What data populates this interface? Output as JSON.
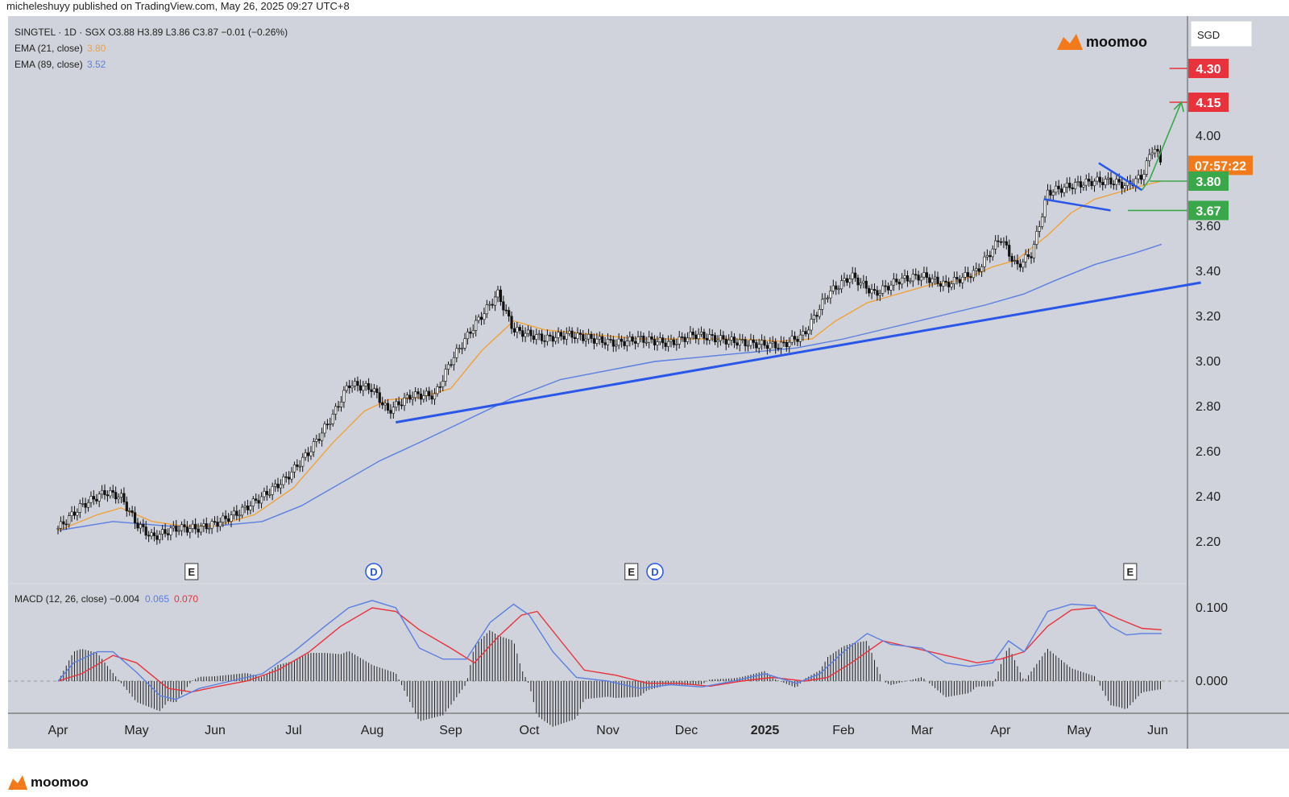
{
  "byline": "micheleshuyy published on TradingView.com, May 26, 2025 09:27 UTC+8",
  "footer_brand": "moomoo",
  "watermark_brand": "moomoo",
  "currency": "SGD",
  "legend": {
    "symbol_line": "SINGTEL · 1D · SGX  O3.88  H3.89  L3.86  C3.87  −0.01 (−0.26%)",
    "ema21_label": "EMA (21, close)",
    "ema21_value": "3.80",
    "ema89_label": "EMA (89, close)",
    "ema89_value": "3.52",
    "macd_label": "MACD (12, 26, close)",
    "macd_hist_value": "−0.004",
    "macd_value": "0.065",
    "macd_signal_value": "0.070"
  },
  "colors": {
    "background": "#d0d3dc",
    "ema21": "#f0a23a",
    "ema89": "#5b7fe0",
    "trendline": "#2a57e8",
    "target_red": "#e8333d",
    "support_green": "#3aa84a",
    "macd_line": "#5b7fe0",
    "signal_line": "#e8333d",
    "countdown": "#f27a1a"
  },
  "price_badges": [
    {
      "label": "4.30",
      "value": 4.3,
      "color": "#e8333d"
    },
    {
      "label": "4.15",
      "value": 4.15,
      "color": "#e8333d"
    },
    {
      "label": "07:57:22",
      "value": 3.87,
      "color": "#f27a1a"
    },
    {
      "label": "3.80",
      "value": 3.8,
      "color": "#3aa84a"
    },
    {
      "label": "3.67",
      "value": 3.67,
      "color": "#3aa84a"
    }
  ],
  "event_markers": [
    {
      "label": "E",
      "month_pos": 1.7
    },
    {
      "label": "D",
      "month_pos": 4.02
    },
    {
      "label": "E",
      "month_pos": 7.3
    },
    {
      "label": "D",
      "month_pos": 7.6
    },
    {
      "label": "E",
      "month_pos": 13.65
    }
  ],
  "chart_data": {
    "type": "candlestick",
    "title": "SINGTEL · 1D · SGX",
    "x_axis_labels": [
      "Apr",
      "May",
      "Jun",
      "Jul",
      "Aug",
      "Sep",
      "Oct",
      "Nov",
      "Dec",
      "2025",
      "Feb",
      "Mar",
      "Apr",
      "May",
      "Jun"
    ],
    "x_axis_bold": [
      false,
      false,
      false,
      false,
      false,
      false,
      false,
      false,
      false,
      true,
      false,
      false,
      false,
      false,
      false
    ],
    "price_ticks": [
      2.2,
      2.4,
      2.6,
      2.8,
      3.0,
      3.2,
      3.4,
      3.6,
      4.0
    ],
    "price_range": [
      2.08,
      4.46
    ],
    "macd_ticks": [
      "0.100",
      "0.000"
    ],
    "macd_range": [
      -0.03,
      0.13
    ],
    "price_path": [
      [
        0.0,
        2.26
      ],
      [
        0.3,
        2.36
      ],
      [
        0.6,
        2.42
      ],
      [
        0.8,
        2.4
      ],
      [
        1.0,
        2.28
      ],
      [
        1.2,
        2.22
      ],
      [
        1.5,
        2.26
      ],
      [
        1.8,
        2.26
      ],
      [
        2.0,
        2.28
      ],
      [
        2.3,
        2.33
      ],
      [
        2.6,
        2.4
      ],
      [
        2.9,
        2.48
      ],
      [
        3.2,
        2.6
      ],
      [
        3.5,
        2.76
      ],
      [
        3.7,
        2.9
      ],
      [
        4.0,
        2.88
      ],
      [
        4.2,
        2.78
      ],
      [
        4.5,
        2.85
      ],
      [
        4.8,
        2.85
      ],
      [
        5.0,
        3.0
      ],
      [
        5.3,
        3.16
      ],
      [
        5.6,
        3.3
      ],
      [
        5.8,
        3.14
      ],
      [
        6.2,
        3.1
      ],
      [
        6.5,
        3.12
      ],
      [
        6.8,
        3.1
      ],
      [
        7.1,
        3.08
      ],
      [
        7.4,
        3.1
      ],
      [
        7.8,
        3.08
      ],
      [
        8.1,
        3.12
      ],
      [
        8.4,
        3.1
      ],
      [
        8.8,
        3.08
      ],
      [
        9.2,
        3.07
      ],
      [
        9.5,
        3.12
      ],
      [
        9.8,
        3.3
      ],
      [
        10.1,
        3.38
      ],
      [
        10.4,
        3.3
      ],
      [
        10.7,
        3.36
      ],
      [
        11.0,
        3.38
      ],
      [
        11.3,
        3.34
      ],
      [
        11.7,
        3.4
      ],
      [
        12.0,
        3.55
      ],
      [
        12.2,
        3.42
      ],
      [
        12.4,
        3.48
      ],
      [
        12.6,
        3.75
      ],
      [
        12.9,
        3.78
      ],
      [
        13.2,
        3.8
      ],
      [
        13.4,
        3.8
      ],
      [
        13.6,
        3.78
      ],
      [
        13.8,
        3.82
      ],
      [
        13.95,
        3.96
      ],
      [
        14.05,
        3.87
      ]
    ],
    "ema21": [
      [
        0.0,
        2.25
      ],
      [
        0.5,
        2.32
      ],
      [
        0.8,
        2.35
      ],
      [
        1.2,
        2.29
      ],
      [
        1.6,
        2.27
      ],
      [
        2.0,
        2.27
      ],
      [
        2.5,
        2.32
      ],
      [
        3.0,
        2.44
      ],
      [
        3.5,
        2.64
      ],
      [
        3.9,
        2.78
      ],
      [
        4.2,
        2.83
      ],
      [
        4.6,
        2.84
      ],
      [
        5.0,
        2.88
      ],
      [
        5.4,
        3.05
      ],
      [
        5.8,
        3.18
      ],
      [
        6.2,
        3.14
      ],
      [
        6.8,
        3.12
      ],
      [
        7.4,
        3.1
      ],
      [
        8.0,
        3.1
      ],
      [
        8.6,
        3.1
      ],
      [
        9.2,
        3.09
      ],
      [
        9.6,
        3.1
      ],
      [
        9.9,
        3.18
      ],
      [
        10.3,
        3.26
      ],
      [
        10.7,
        3.3
      ],
      [
        11.1,
        3.34
      ],
      [
        11.5,
        3.36
      ],
      [
        11.9,
        3.42
      ],
      [
        12.2,
        3.45
      ],
      [
        12.6,
        3.56
      ],
      [
        12.9,
        3.66
      ],
      [
        13.2,
        3.72
      ],
      [
        13.5,
        3.75
      ],
      [
        13.8,
        3.78
      ],
      [
        14.05,
        3.8
      ]
    ],
    "ema89": [
      [
        0.0,
        2.25
      ],
      [
        0.7,
        2.29
      ],
      [
        1.4,
        2.27
      ],
      [
        2.0,
        2.27
      ],
      [
        2.6,
        2.29
      ],
      [
        3.1,
        2.36
      ],
      [
        3.6,
        2.46
      ],
      [
        4.1,
        2.56
      ],
      [
        4.6,
        2.64
      ],
      [
        5.2,
        2.74
      ],
      [
        5.8,
        2.84
      ],
      [
        6.4,
        2.92
      ],
      [
        7.0,
        2.96
      ],
      [
        7.6,
        3.0
      ],
      [
        8.2,
        3.02
      ],
      [
        8.8,
        3.04
      ],
      [
        9.4,
        3.06
      ],
      [
        10.0,
        3.1
      ],
      [
        10.6,
        3.15
      ],
      [
        11.2,
        3.2
      ],
      [
        11.8,
        3.25
      ],
      [
        12.3,
        3.3
      ],
      [
        12.7,
        3.36
      ],
      [
        13.2,
        3.43
      ],
      [
        13.7,
        3.48
      ],
      [
        14.05,
        3.52
      ]
    ],
    "trendline_long": [
      [
        4.3,
        2.73
      ],
      [
        14.55,
        3.35
      ]
    ],
    "triangle_upper": [
      [
        13.25,
        3.88
      ],
      [
        13.8,
        3.76
      ]
    ],
    "triangle_lower": [
      [
        12.55,
        3.72
      ],
      [
        13.4,
        3.67
      ]
    ],
    "projection_arrow": [
      [
        13.9,
        3.81
      ],
      [
        14.3,
        4.15
      ]
    ],
    "target_lines": [
      {
        "value": 4.3,
        "from": 14.15,
        "color": "#e8333d"
      },
      {
        "value": 4.15,
        "from": 14.15,
        "color": "#e8333d"
      },
      {
        "value": 3.8,
        "from": 13.9,
        "color": "#3aa84a"
      },
      {
        "value": 3.67,
        "from": 13.62,
        "color": "#3aa84a"
      }
    ],
    "macd": [
      [
        0.0,
        0.0
      ],
      [
        0.2,
        0.025
      ],
      [
        0.5,
        0.04
      ],
      [
        0.7,
        0.04
      ],
      [
        1.0,
        0.012
      ],
      [
        1.3,
        -0.02
      ],
      [
        1.5,
        -0.025
      ],
      [
        1.8,
        -0.01
      ],
      [
        2.2,
        0.0
      ],
      [
        2.6,
        0.01
      ],
      [
        3.0,
        0.04
      ],
      [
        3.4,
        0.075
      ],
      [
        3.7,
        0.1
      ],
      [
        4.0,
        0.11
      ],
      [
        4.3,
        0.1
      ],
      [
        4.6,
        0.045
      ],
      [
        4.9,
        0.03
      ],
      [
        5.2,
        0.03
      ],
      [
        5.5,
        0.08
      ],
      [
        5.8,
        0.105
      ],
      [
        6.0,
        0.09
      ],
      [
        6.3,
        0.04
      ],
      [
        6.6,
        0.005
      ],
      [
        7.0,
        0.0
      ],
      [
        7.4,
        -0.01
      ],
      [
        7.8,
        -0.005
      ],
      [
        8.2,
        -0.008
      ],
      [
        8.6,
        0.0
      ],
      [
        9.0,
        0.01
      ],
      [
        9.4,
        -0.003
      ],
      [
        9.7,
        0.01
      ],
      [
        10.0,
        0.04
      ],
      [
        10.3,
        0.065
      ],
      [
        10.6,
        0.05
      ],
      [
        11.0,
        0.045
      ],
      [
        11.3,
        0.025
      ],
      [
        11.6,
        0.02
      ],
      [
        11.9,
        0.025
      ],
      [
        12.1,
        0.055
      ],
      [
        12.3,
        0.04
      ],
      [
        12.6,
        0.095
      ],
      [
        12.9,
        0.105
      ],
      [
        13.2,
        0.103
      ],
      [
        13.4,
        0.075
      ],
      [
        13.6,
        0.063
      ],
      [
        13.8,
        0.065
      ],
      [
        14.05,
        0.065
      ]
    ],
    "signal": [
      [
        0.0,
        0.0
      ],
      [
        0.3,
        0.01
      ],
      [
        0.7,
        0.035
      ],
      [
        1.0,
        0.025
      ],
      [
        1.4,
        -0.01
      ],
      [
        1.7,
        -0.015
      ],
      [
        2.0,
        -0.008
      ],
      [
        2.4,
        0.0
      ],
      [
        2.8,
        0.015
      ],
      [
        3.2,
        0.04
      ],
      [
        3.6,
        0.075
      ],
      [
        4.0,
        0.1
      ],
      [
        4.3,
        0.095
      ],
      [
        4.6,
        0.07
      ],
      [
        5.0,
        0.045
      ],
      [
        5.3,
        0.025
      ],
      [
        5.6,
        0.06
      ],
      [
        5.9,
        0.09
      ],
      [
        6.1,
        0.095
      ],
      [
        6.4,
        0.055
      ],
      [
        6.7,
        0.015
      ],
      [
        7.1,
        0.008
      ],
      [
        7.5,
        -0.003
      ],
      [
        7.9,
        -0.003
      ],
      [
        8.3,
        -0.007
      ],
      [
        8.7,
        0.0
      ],
      [
        9.1,
        0.005
      ],
      [
        9.5,
        0.0
      ],
      [
        9.8,
        0.005
      ],
      [
        10.1,
        0.025
      ],
      [
        10.5,
        0.055
      ],
      [
        10.9,
        0.045
      ],
      [
        11.3,
        0.035
      ],
      [
        11.7,
        0.025
      ],
      [
        12.0,
        0.03
      ],
      [
        12.3,
        0.04
      ],
      [
        12.6,
        0.075
      ],
      [
        12.9,
        0.097
      ],
      [
        13.2,
        0.1
      ],
      [
        13.5,
        0.085
      ],
      [
        13.8,
        0.072
      ],
      [
        14.05,
        0.07
      ]
    ],
    "histogram_color": "#222222"
  }
}
